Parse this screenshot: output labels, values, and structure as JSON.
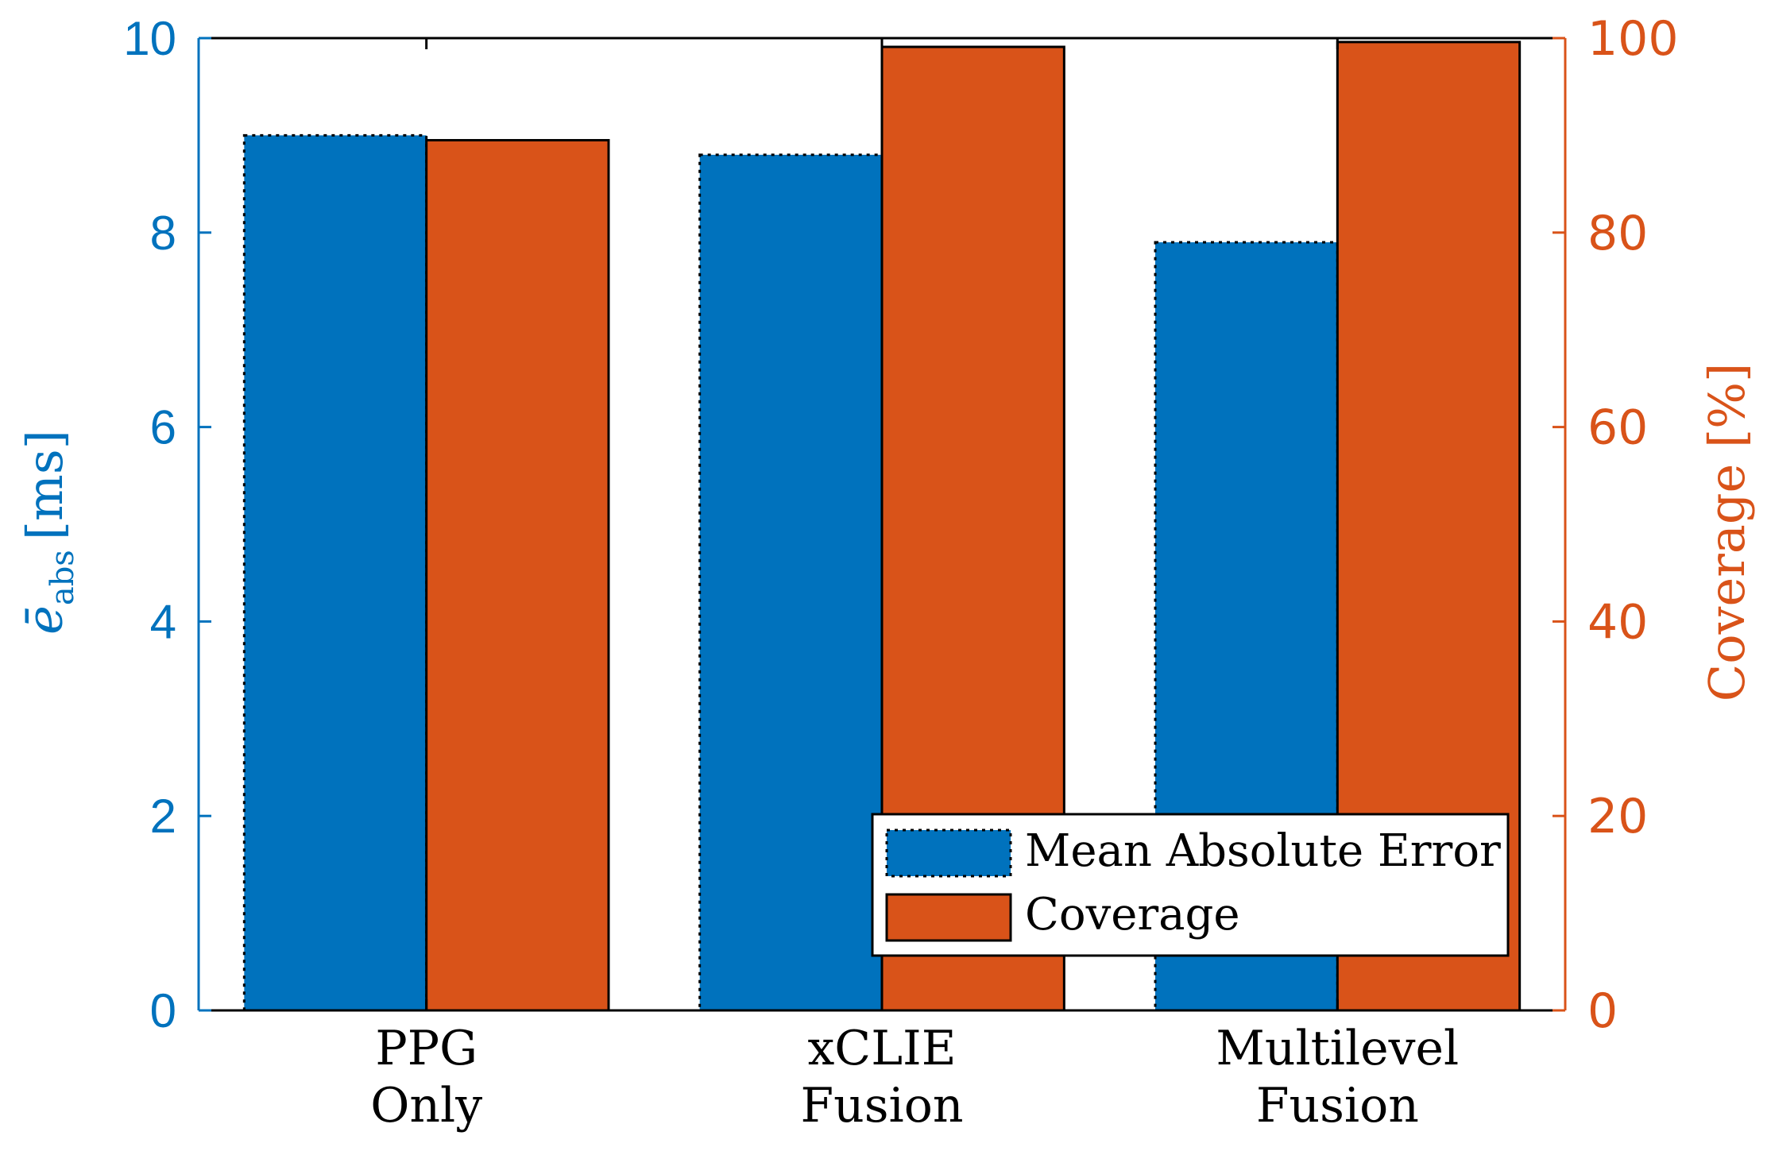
{
  "chart_data": {
    "type": "bar",
    "categories": [
      [
        "PPG",
        "Only"
      ],
      [
        "xCLIE",
        "Fusion"
      ],
      [
        "Multilevel",
        "Fusion"
      ]
    ],
    "series": [
      {
        "name": "Mean Absolute Error",
        "axis": "left",
        "color": "#0072BD",
        "border": "dotted",
        "values": [
          9.0,
          8.8,
          7.9
        ]
      },
      {
        "name": "Coverage",
        "axis": "right",
        "color": "#D95319",
        "border": "solid",
        "values": [
          89.5,
          99.1,
          99.6
        ]
      }
    ],
    "y_left": {
      "label_main": "ē",
      "label_sub": "abs",
      "label_unit": "[ms]",
      "ylim": [
        0,
        10
      ],
      "ticks": [
        0,
        2,
        4,
        6,
        8,
        10
      ],
      "color": "#0072BD"
    },
    "y_right": {
      "label": "Coverage [%]",
      "ylim": [
        0,
        100
      ],
      "ticks": [
        0,
        20,
        40,
        60,
        80,
        100
      ],
      "color": "#D95319"
    },
    "legend": {
      "placement": "bottom-right"
    },
    "grid": false
  }
}
